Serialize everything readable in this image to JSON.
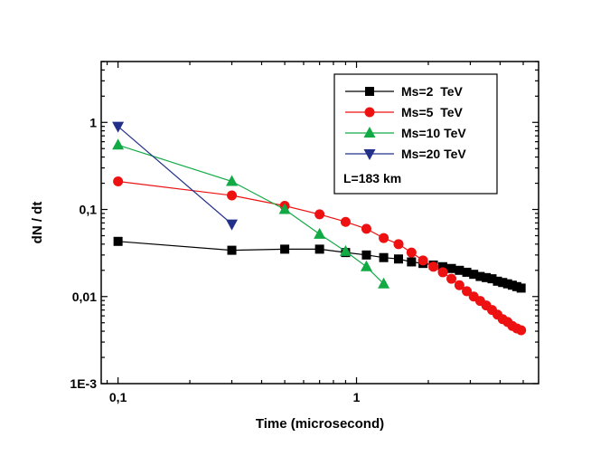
{
  "chart_data": {
    "type": "line",
    "title": "",
    "xlabel": "Time (microsecond)",
    "ylabel": "dN / dt",
    "xscale": "log",
    "yscale": "log",
    "xlim": [
      0.085,
      5.8
    ],
    "ylim": [
      0.001,
      5
    ],
    "x_ticks": [
      {
        "value": 0.1,
        "label": "0,1"
      },
      {
        "value": 1,
        "label": "1"
      }
    ],
    "y_ticks": [
      {
        "value": 0.001,
        "label": "1E-3"
      },
      {
        "value": 0.01,
        "label": "0,01"
      },
      {
        "value": 0.1,
        "label": "0,1"
      },
      {
        "value": 1,
        "label": "1"
      }
    ],
    "legend_position": "top-right",
    "annotation": "L=183 km",
    "series": [
      {
        "name": "Ms=2  TeV",
        "color": "#000000",
        "marker": "square",
        "x": [
          0.1,
          0.3,
          0.5,
          0.7,
          0.9,
          1.1,
          1.3,
          1.5,
          1.7,
          1.9,
          2.1,
          2.3,
          2.5,
          2.7,
          2.9,
          3.1,
          3.3,
          3.5,
          3.7,
          3.9,
          4.1,
          4.3,
          4.5,
          4.7,
          4.9
        ],
        "y": [
          0.043,
          0.034,
          0.035,
          0.035,
          0.032,
          0.03,
          0.028,
          0.027,
          0.025,
          0.024,
          0.023,
          0.022,
          0.021,
          0.02,
          0.019,
          0.018,
          0.017,
          0.0165,
          0.016,
          0.015,
          0.0145,
          0.014,
          0.0135,
          0.013,
          0.0125
        ]
      },
      {
        "name": "Ms=5  TeV",
        "color": "#ee1111",
        "marker": "circle",
        "x": [
          0.1,
          0.3,
          0.5,
          0.7,
          0.9,
          1.1,
          1.3,
          1.5,
          1.7,
          1.9,
          2.1,
          2.3,
          2.5,
          2.7,
          2.9,
          3.1,
          3.3,
          3.5,
          3.7,
          3.9,
          4.1,
          4.3,
          4.5,
          4.7,
          4.9
        ],
        "y": [
          0.21,
          0.145,
          0.11,
          0.088,
          0.072,
          0.06,
          0.047,
          0.04,
          0.032,
          0.026,
          0.022,
          0.019,
          0.016,
          0.0135,
          0.0115,
          0.01,
          0.0089,
          0.0079,
          0.007,
          0.0062,
          0.0055,
          0.0051,
          0.0046,
          0.0043,
          0.0041
        ]
      },
      {
        "name": "Ms=10 TeV",
        "color": "#11aa44",
        "marker": "triangle-up",
        "x": [
          0.1,
          0.3,
          0.5,
          0.7,
          0.9,
          1.1,
          1.3
        ],
        "y": [
          0.55,
          0.21,
          0.1,
          0.052,
          0.033,
          0.022,
          0.014
        ]
      },
      {
        "name": "Ms=20 TeV",
        "color": "#22308a",
        "marker": "triangle-down",
        "x": [
          0.1,
          0.3
        ],
        "y": [
          0.9,
          0.068
        ]
      }
    ]
  }
}
